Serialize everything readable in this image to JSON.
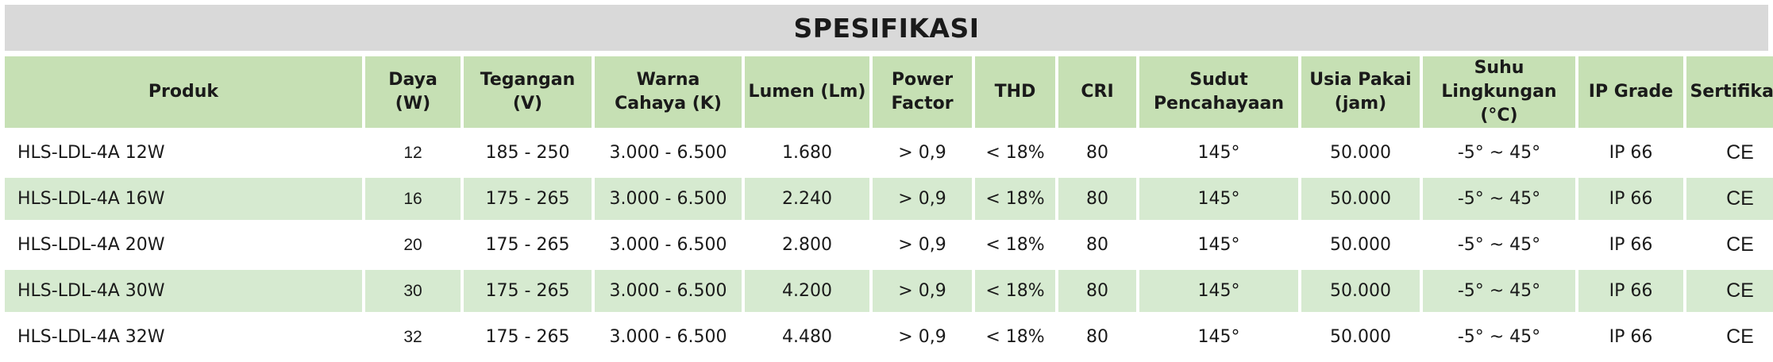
{
  "title": "SPESIFIKASI",
  "columns": [
    "Produk",
    "Daya (W)",
    "Tegangan (V)",
    "Warna Cahaya (K)",
    "Lumen (Lm)",
    "Power Factor",
    "THD",
    "CRI",
    "Sudut Pencahayaan",
    "Usia Pakai (jam)",
    "Suhu Lingkungan (°C)",
    "IP Grade",
    "Sertifikasi"
  ],
  "rows": [
    {
      "produk": "HLS-LDL-4A 12W",
      "daya": "12",
      "tegangan": "185 - 250",
      "warna": "3.000 - 6.500",
      "lumen": "1.680",
      "pf": "> 0,9",
      "thd": "< 18%",
      "cri": "80",
      "sudut": "145°",
      "usia": "50.000",
      "suhu": "-5° ~ 45°",
      "ip": "IP 66",
      "sertifikasi": "CE"
    },
    {
      "produk": "HLS-LDL-4A 16W",
      "daya": "16",
      "tegangan": "175 - 265",
      "warna": "3.000 - 6.500",
      "lumen": "2.240",
      "pf": "> 0,9",
      "thd": "< 18%",
      "cri": "80",
      "sudut": "145°",
      "usia": "50.000",
      "suhu": "-5° ~ 45°",
      "ip": "IP 66",
      "sertifikasi": "CE"
    },
    {
      "produk": "HLS-LDL-4A 20W",
      "daya": "20",
      "tegangan": "175 - 265",
      "warna": "3.000 - 6.500",
      "lumen": "2.800",
      "pf": "> 0,9",
      "thd": "< 18%",
      "cri": "80",
      "sudut": "145°",
      "usia": "50.000",
      "suhu": "-5° ~ 45°",
      "ip": "IP 66",
      "sertifikasi": "CE"
    },
    {
      "produk": "HLS-LDL-4A 30W",
      "daya": "30",
      "tegangan": "175 - 265",
      "warna": "3.000 - 6.500",
      "lumen": "4.200",
      "pf": "> 0,9",
      "thd": "< 18%",
      "cri": "80",
      "sudut": "145°",
      "usia": "50.000",
      "suhu": "-5° ~ 45°",
      "ip": "IP 66",
      "sertifikasi": "CE"
    },
    {
      "produk": "HLS-LDL-4A 32W",
      "daya": "32",
      "tegangan": "175 - 265",
      "warna": "3.000 - 6.500",
      "lumen": "4.480",
      "pf": "> 0,9",
      "thd": "< 18%",
      "cri": "80",
      "sudut": "145°",
      "usia": "50.000",
      "suhu": "-5° ~ 45°",
      "ip": "IP 66",
      "sertifikasi": "CE"
    }
  ],
  "colors": {
    "title_bg": "#d9d9d9",
    "header_bg": "#c6e0b4",
    "band_bg": "#d6ead0",
    "plain_bg": "#ffffff",
    "text": "#1a1a1a"
  }
}
